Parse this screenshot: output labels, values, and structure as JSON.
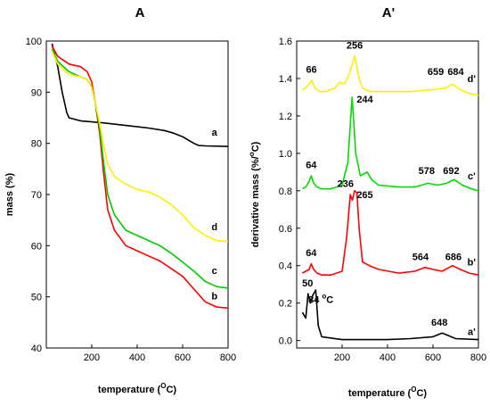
{
  "chart_data": [
    {
      "type": "line",
      "title": "A",
      "xlabel": "temperature (",
      "xlabel_unit": "O",
      "xlabel_end": "C)",
      "ylabel": "mass (%)",
      "xlim": [
        0,
        800
      ],
      "ylim": [
        40,
        100
      ],
      "xticks": [
        "200",
        "400",
        "600",
        "800"
      ],
      "yticks": [
        "40",
        "50",
        "60",
        "70",
        "80",
        "90",
        "100"
      ],
      "grid": false,
      "series": [
        {
          "name": "a",
          "color": "#000000",
          "x": [
            25,
            50,
            70,
            90,
            100,
            150,
            250,
            350,
            450,
            520,
            560,
            600,
            630,
            650,
            670,
            700,
            800
          ],
          "y": [
            99.5,
            95,
            90,
            86,
            85,
            84.4,
            84,
            83.5,
            83,
            82.5,
            82,
            81.3,
            80.5,
            80,
            79.6,
            79.5,
            79.4
          ]
        },
        {
          "name": "b",
          "color": "#ff0000",
          "x": [
            25,
            50,
            100,
            150,
            180,
            200,
            215,
            235,
            250,
            270,
            300,
            350,
            400,
            450,
            500,
            550,
            600,
            650,
            700,
            750,
            800
          ],
          "y": [
            99,
            97,
            95.5,
            95,
            94,
            92,
            88,
            82,
            75,
            67,
            63,
            60,
            59,
            58,
            57,
            55.5,
            54,
            51.5,
            49,
            48,
            47.8
          ]
        },
        {
          "name": "c",
          "color": "#00cc00",
          "x": [
            25,
            50,
            100,
            150,
            180,
            200,
            215,
            235,
            250,
            270,
            300,
            350,
            400,
            450,
            500,
            550,
            600,
            650,
            700,
            750,
            800
          ],
          "y": [
            98.5,
            96,
            94,
            93,
            92.5,
            91,
            88,
            83,
            77,
            70,
            66,
            63,
            62,
            61,
            60,
            58.5,
            56.8,
            55,
            53,
            52,
            51.7
          ]
        },
        {
          "name": "d",
          "color": "#ffee00",
          "x": [
            25,
            50,
            100,
            150,
            180,
            200,
            215,
            235,
            250,
            270,
            300,
            350,
            400,
            450,
            500,
            550,
            600,
            650,
            700,
            750,
            800
          ],
          "y": [
            98,
            95.5,
            93.5,
            93,
            92.5,
            91,
            88,
            84,
            80,
            76,
            73.5,
            72,
            71,
            70.5,
            69.5,
            68,
            66,
            63.5,
            62,
            61,
            60.8
          ]
        }
      ],
      "annotations": [
        {
          "text": "a",
          "x": 740,
          "y": 81.5
        },
        {
          "text": "d",
          "x": 740,
          "y": 63
        },
        {
          "text": "c",
          "x": 740,
          "y": 54.5
        },
        {
          "text": "b",
          "x": 740,
          "y": 49.5
        }
      ]
    },
    {
      "type": "line",
      "title": "A'",
      "xlabel": "temperature (",
      "xlabel_unit": "O",
      "xlabel_end": "C)",
      "ylabel": "derivative mass (%/",
      "ylabel_unit": "o",
      "ylabel_end": "C)",
      "xlim": [
        0,
        800
      ],
      "ylim": [
        -0.04,
        1.6
      ],
      "xticks": [
        "200",
        "400",
        "600",
        "800"
      ],
      "yticks": [
        "0.0",
        "0.2",
        "0.4",
        "0.6",
        "0.8",
        "1.0",
        "1.2",
        "1.4",
        "1.6"
      ],
      "ytick_values": [
        0,
        0.2,
        0.4,
        0.6,
        0.8,
        1.0,
        1.2,
        1.4,
        1.6
      ],
      "grid": false,
      "series": [
        {
          "name": "a'",
          "color": "#000000",
          "x": [
            25,
            40,
            50,
            60,
            70,
            84,
            95,
            110,
            200,
            400,
            500,
            600,
            640,
            660,
            700,
            800
          ],
          "y": [
            0.15,
            0.12,
            0.25,
            0.2,
            0.24,
            0.27,
            0.08,
            0.02,
            0.005,
            0.005,
            0.01,
            0.02,
            0.04,
            0.03,
            0.01,
            0.005
          ]
        },
        {
          "name": "b'",
          "color": "#ff0000",
          "x": [
            25,
            40,
            55,
            64,
            75,
            90,
            110,
            150,
            200,
            220,
            236,
            245,
            255,
            265,
            275,
            290,
            320,
            360,
            450,
            520,
            564,
            600,
            640,
            686,
            720,
            760,
            800
          ],
          "y": [
            0.36,
            0.37,
            0.38,
            0.41,
            0.38,
            0.36,
            0.35,
            0.35,
            0.37,
            0.55,
            0.78,
            0.75,
            0.8,
            0.79,
            0.6,
            0.42,
            0.4,
            0.38,
            0.36,
            0.37,
            0.39,
            0.38,
            0.37,
            0.4,
            0.38,
            0.36,
            0.35
          ]
        },
        {
          "name": "c'",
          "color": "#00dd00",
          "x": [
            25,
            40,
            55,
            64,
            75,
            90,
            110,
            150,
            200,
            225,
            244,
            260,
            280,
            310,
            330,
            360,
            450,
            520,
            578,
            620,
            660,
            692,
            730,
            770,
            800
          ],
          "y": [
            0.81,
            0.82,
            0.85,
            0.88,
            0.84,
            0.82,
            0.81,
            0.81,
            0.83,
            0.95,
            1.3,
            1.0,
            0.88,
            0.9,
            0.86,
            0.83,
            0.82,
            0.82,
            0.84,
            0.83,
            0.84,
            0.86,
            0.83,
            0.81,
            0.8
          ]
        },
        {
          "name": "d'",
          "color": "#ffee00",
          "x": [
            25,
            40,
            55,
            66,
            80,
            100,
            130,
            170,
            190,
            210,
            230,
            256,
            275,
            290,
            320,
            400,
            500,
            600,
            659,
            684,
            720,
            760,
            800
          ],
          "y": [
            1.34,
            1.35,
            1.37,
            1.39,
            1.35,
            1.33,
            1.33,
            1.35,
            1.38,
            1.37,
            1.42,
            1.52,
            1.4,
            1.35,
            1.33,
            1.33,
            1.33,
            1.34,
            1.35,
            1.37,
            1.34,
            1.32,
            1.31
          ]
        }
      ],
      "annotations": [
        {
          "text": "256",
          "x": 255,
          "y": 1.56
        },
        {
          "text": "66",
          "x": 65,
          "y": 1.43
        },
        {
          "text": "659",
          "x": 612,
          "y": 1.42
        },
        {
          "text": "684",
          "x": 700,
          "y": 1.42
        },
        {
          "text": "d'",
          "x": 770,
          "y": 1.38
        },
        {
          "text": "244",
          "x": 300,
          "y": 1.27
        },
        {
          "text": "64",
          "x": 64,
          "y": 0.92
        },
        {
          "text": "578",
          "x": 572,
          "y": 0.89
        },
        {
          "text": "692",
          "x": 680,
          "y": 0.89
        },
        {
          "text": "c'",
          "x": 770,
          "y": 0.86
        },
        {
          "text": "236",
          "x": 215,
          "y": 0.82
        },
        {
          "text": "265",
          "x": 300,
          "y": 0.76
        },
        {
          "text": "64",
          "x": 64,
          "y": 0.45
        },
        {
          "text": "564",
          "x": 545,
          "y": 0.43
        },
        {
          "text": "686",
          "x": 690,
          "y": 0.43
        },
        {
          "text": "b'",
          "x": 770,
          "y": 0.4
        },
        {
          "text": "50",
          "x": 48,
          "y": 0.29
        },
        {
          "text": "84",
          "x": 130,
          "y": 0.2
        },
        {
          "text": "648",
          "x": 628,
          "y": 0.08
        },
        {
          "text": "a'",
          "x": 770,
          "y": 0.03
        }
      ],
      "annotation_84_unit": "o",
      "annotation_84_end": "C"
    }
  ]
}
